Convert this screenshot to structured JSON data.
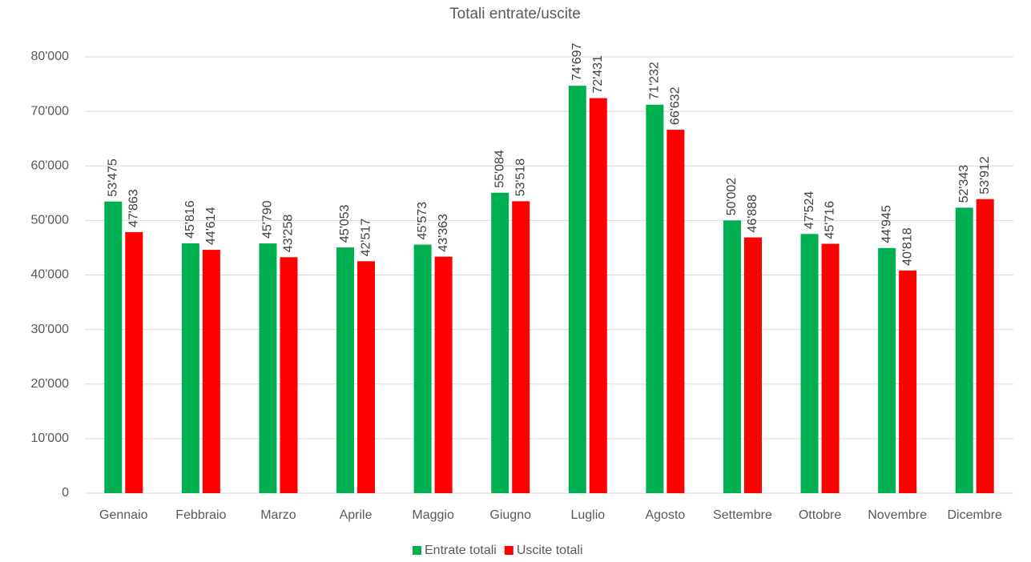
{
  "chart_data": {
    "type": "bar",
    "title": "Totali entrate/uscite",
    "categories": [
      "Gennaio",
      "Febbraio",
      "Marzo",
      "Aprile",
      "Maggio",
      "Giugno",
      "Luglio",
      "Agosto",
      "Settembre",
      "Ottobre",
      "Novembre",
      "Dicembre"
    ],
    "series": [
      {
        "name": "Entrate totali",
        "color": "#00b050",
        "values": [
          53475,
          45816,
          45790,
          45053,
          45573,
          55084,
          74697,
          71232,
          50002,
          47524,
          44945,
          52343
        ],
        "value_labels": [
          "53'475",
          "45'816",
          "45'790",
          "45'053",
          "45'573",
          "55'084",
          "74'697",
          "71'232",
          "50'002",
          "47'524",
          "44'945",
          "52'343"
        ]
      },
      {
        "name": "Uscite totali",
        "color": "#ff0000",
        "values": [
          47863,
          44614,
          43258,
          42517,
          43363,
          53518,
          72431,
          66632,
          46888,
          45716,
          40818,
          53912
        ],
        "value_labels": [
          "47'863",
          "44'614",
          "43'258",
          "42'517",
          "43'363",
          "53'518",
          "72'431",
          "66'632",
          "46'888",
          "45'716",
          "40'818",
          "53'912"
        ]
      }
    ],
    "ylim": [
      0,
      80000
    ],
    "yticks": [
      0,
      {
        "value": 10000,
        "label": "10'000"
      },
      {
        "value": 20000,
        "label": "20'000"
      },
      {
        "value": 30000,
        "label": "30'000"
      },
      {
        "value": 40000,
        "label": "40'000"
      },
      {
        "value": 50000,
        "label": "50'000"
      },
      {
        "value": 60000,
        "label": "60'000"
      },
      {
        "value": 70000,
        "label": "70'000"
      },
      {
        "value": 80000,
        "label": "80'000"
      }
    ],
    "grid": true,
    "legend": "bottom"
  }
}
